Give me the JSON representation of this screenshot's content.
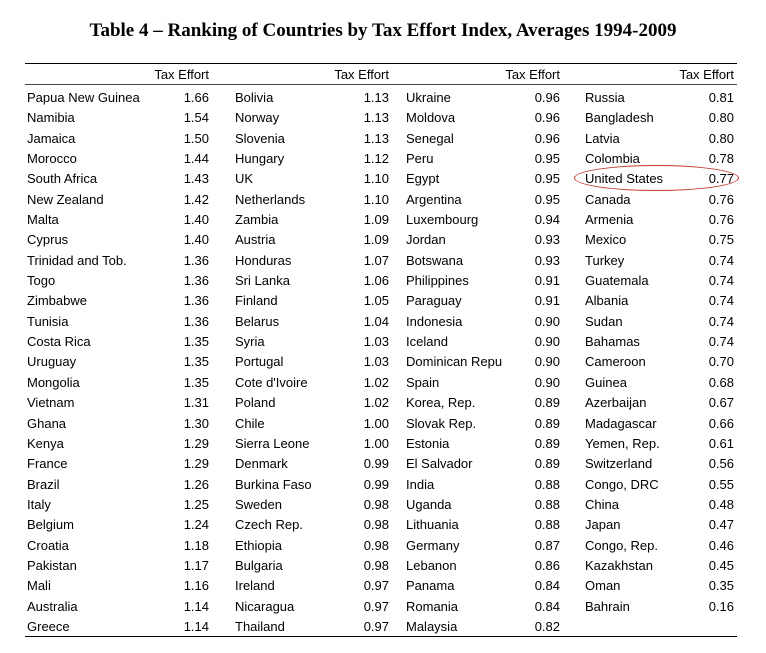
{
  "title": "Table 4 – Ranking of Countries by Tax Effort Index, Averages 1994-2009",
  "header_label": "Tax Effort",
  "highlight_color": "#c0392b",
  "columns": [
    {
      "rows": [
        {
          "country": "Papua New Guinea",
          "value": "1.66"
        },
        {
          "country": "Namibia",
          "value": "1.54"
        },
        {
          "country": "Jamaica",
          "value": "1.50"
        },
        {
          "country": "Morocco",
          "value": "1.44"
        },
        {
          "country": "South Africa",
          "value": "1.43"
        },
        {
          "country": "New Zealand",
          "value": "1.42"
        },
        {
          "country": "Malta",
          "value": "1.40"
        },
        {
          "country": "Cyprus",
          "value": "1.40"
        },
        {
          "country": "Trinidad and Tob.",
          "value": "1.36"
        },
        {
          "country": "Togo",
          "value": "1.36"
        },
        {
          "country": "Zimbabwe",
          "value": "1.36"
        },
        {
          "country": "Tunisia",
          "value": "1.36"
        },
        {
          "country": "Costa Rica",
          "value": "1.35"
        },
        {
          "country": "Uruguay",
          "value": "1.35"
        },
        {
          "country": "Mongolia",
          "value": "1.35"
        },
        {
          "country": "Vietnam",
          "value": "1.31"
        },
        {
          "country": "Ghana",
          "value": "1.30"
        },
        {
          "country": "Kenya",
          "value": "1.29"
        },
        {
          "country": "France",
          "value": "1.29"
        },
        {
          "country": "Brazil",
          "value": "1.26"
        },
        {
          "country": "Italy",
          "value": "1.25"
        },
        {
          "country": "Belgium",
          "value": "1.24"
        },
        {
          "country": "Croatia",
          "value": "1.18"
        },
        {
          "country": "Pakistan",
          "value": "1.17"
        },
        {
          "country": "Mali",
          "value": "1.16"
        },
        {
          "country": "Australia",
          "value": "1.14"
        },
        {
          "country": "Greece",
          "value": "1.14"
        }
      ]
    },
    {
      "rows": [
        {
          "country": "Bolivia",
          "value": "1.13"
        },
        {
          "country": "Norway",
          "value": "1.13"
        },
        {
          "country": "Slovenia",
          "value": "1.13"
        },
        {
          "country": "Hungary",
          "value": "1.12"
        },
        {
          "country": "UK",
          "value": "1.10"
        },
        {
          "country": "Netherlands",
          "value": "1.10"
        },
        {
          "country": "Zambia",
          "value": "1.09"
        },
        {
          "country": "Austria",
          "value": "1.09"
        },
        {
          "country": "Honduras",
          "value": "1.07"
        },
        {
          "country": "Sri Lanka",
          "value": "1.06"
        },
        {
          "country": "Finland",
          "value": "1.05"
        },
        {
          "country": "Belarus",
          "value": "1.04"
        },
        {
          "country": "Syria",
          "value": "1.03"
        },
        {
          "country": "Portugal",
          "value": "1.03"
        },
        {
          "country": "Cote d'Ivoire",
          "value": "1.02"
        },
        {
          "country": "Poland",
          "value": "1.02"
        },
        {
          "country": "Chile",
          "value": "1.00"
        },
        {
          "country": "Sierra Leone",
          "value": "1.00"
        },
        {
          "country": "Denmark",
          "value": "0.99"
        },
        {
          "country": "Burkina Faso",
          "value": "0.99"
        },
        {
          "country": "Sweden",
          "value": "0.98"
        },
        {
          "country": "Czech Rep.",
          "value": "0.98"
        },
        {
          "country": "Ethiopia",
          "value": "0.98"
        },
        {
          "country": "Bulgaria",
          "value": "0.98"
        },
        {
          "country": "Ireland",
          "value": "0.97"
        },
        {
          "country": "Nicaragua",
          "value": "0.97"
        },
        {
          "country": "Thailand",
          "value": "0.97"
        }
      ]
    },
    {
      "rows": [
        {
          "country": "Ukraine",
          "value": "0.96"
        },
        {
          "country": "Moldova",
          "value": "0.96"
        },
        {
          "country": "Senegal",
          "value": "0.96"
        },
        {
          "country": "Peru",
          "value": "0.95"
        },
        {
          "country": "Egypt",
          "value": "0.95"
        },
        {
          "country": "Argentina",
          "value": "0.95"
        },
        {
          "country": "Luxembourg",
          "value": "0.94"
        },
        {
          "country": "Jordan",
          "value": "0.93"
        },
        {
          "country": "Botswana",
          "value": "0.93"
        },
        {
          "country": "Philippines",
          "value": "0.91"
        },
        {
          "country": "Paraguay",
          "value": "0.91"
        },
        {
          "country": "Indonesia",
          "value": "0.90"
        },
        {
          "country": "Iceland",
          "value": "0.90"
        },
        {
          "country": "Dominican Repu",
          "value": "0.90"
        },
        {
          "country": "Spain",
          "value": "0.90"
        },
        {
          "country": "Korea, Rep.",
          "value": "0.89"
        },
        {
          "country": "Slovak Rep.",
          "value": "0.89"
        },
        {
          "country": "Estonia",
          "value": "0.89"
        },
        {
          "country": "El Salvador",
          "value": "0.89"
        },
        {
          "country": "India",
          "value": "0.88"
        },
        {
          "country": "Uganda",
          "value": "0.88"
        },
        {
          "country": "Lithuania",
          "value": "0.88"
        },
        {
          "country": "Germany",
          "value": "0.87"
        },
        {
          "country": "Lebanon",
          "value": "0.86"
        },
        {
          "country": "Panama",
          "value": "0.84"
        },
        {
          "country": "Romania",
          "value": "0.84"
        },
        {
          "country": "Malaysia",
          "value": "0.82"
        }
      ]
    },
    {
      "rows": [
        {
          "country": "Russia",
          "value": "0.81"
        },
        {
          "country": "Bangladesh",
          "value": "0.80"
        },
        {
          "country": "Latvia",
          "value": "0.80"
        },
        {
          "country": "Colombia",
          "value": "0.78"
        },
        {
          "country": "United States",
          "value": "0.77"
        },
        {
          "country": "Canada",
          "value": "0.76"
        },
        {
          "country": "Armenia",
          "value": "0.76"
        },
        {
          "country": "Mexico",
          "value": "0.75"
        },
        {
          "country": "Turkey",
          "value": "0.74"
        },
        {
          "country": "Guatemala",
          "value": "0.74"
        },
        {
          "country": "Albania",
          "value": "0.74"
        },
        {
          "country": "Sudan",
          "value": "0.74"
        },
        {
          "country": "Bahamas",
          "value": "0.74"
        },
        {
          "country": "Cameroon",
          "value": "0.70"
        },
        {
          "country": "Guinea",
          "value": "0.68"
        },
        {
          "country": "Azerbaijan",
          "value": "0.67"
        },
        {
          "country": "Madagascar",
          "value": "0.66"
        },
        {
          "country": "Yemen, Rep.",
          "value": "0.61"
        },
        {
          "country": "Switzerland",
          "value": "0.56"
        },
        {
          "country": "Congo, DRC",
          "value": "0.55"
        },
        {
          "country": "China",
          "value": "0.48"
        },
        {
          "country": "Japan",
          "value": "0.47"
        },
        {
          "country": "Congo, Rep.",
          "value": "0.46"
        },
        {
          "country": "Kazakhstan",
          "value": "0.45"
        },
        {
          "country": "Oman",
          "value": "0.35"
        },
        {
          "country": "Bahrain",
          "value": "0.16"
        }
      ]
    }
  ]
}
